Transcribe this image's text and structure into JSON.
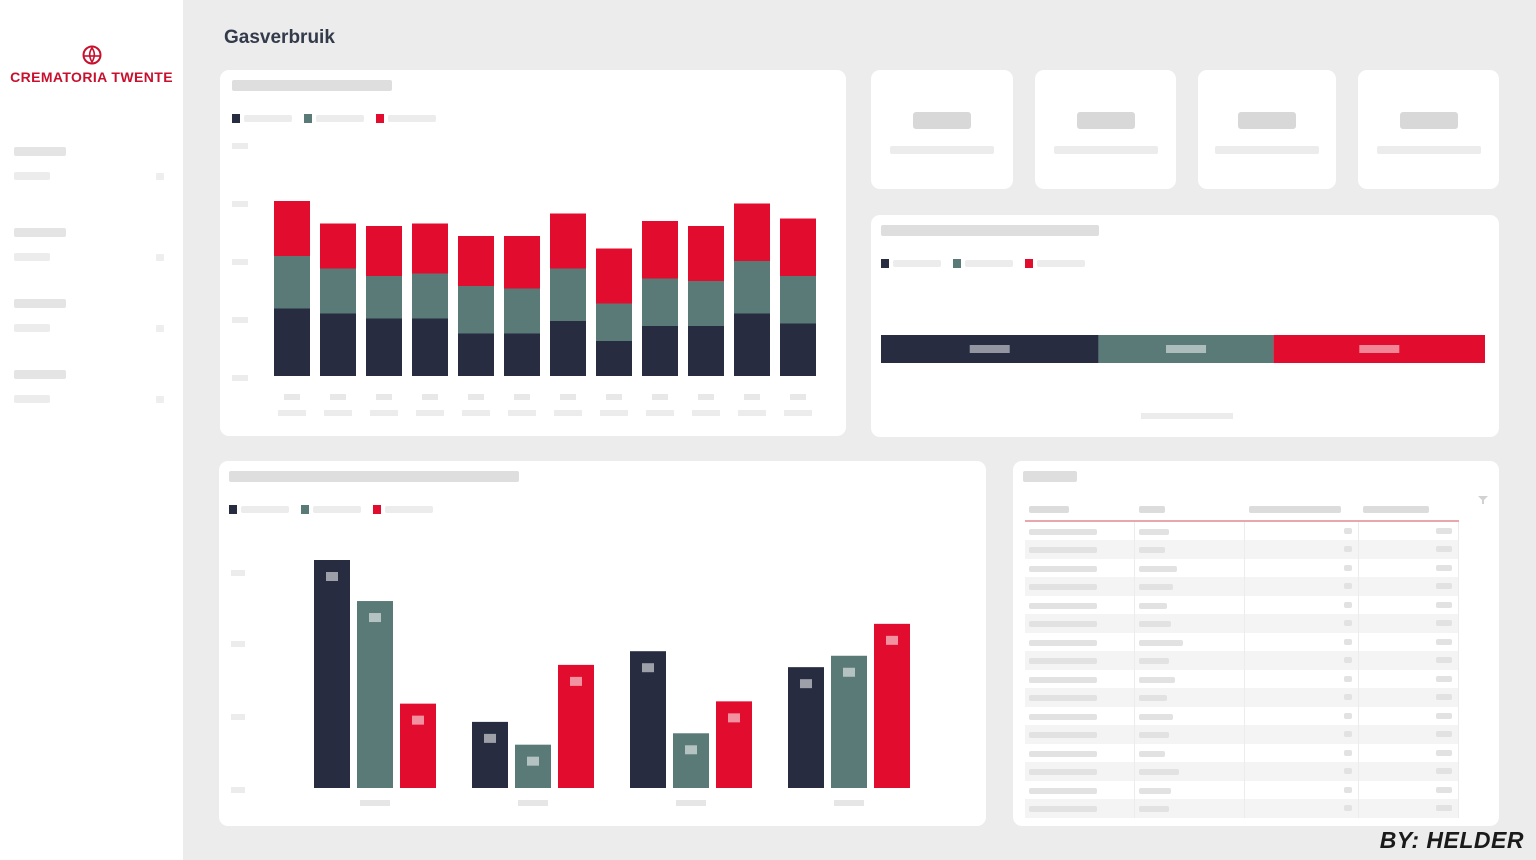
{
  "logo": {
    "text": "CREMATORIA TWENTE",
    "icon": "crematoria-logo-icon"
  },
  "page": {
    "title": "Gasverbruik"
  },
  "filters": [
    {
      "label": "",
      "value": ""
    },
    {
      "label": "",
      "value": ""
    },
    {
      "label": "",
      "value": ""
    },
    {
      "label": "",
      "value": ""
    }
  ],
  "kpis": [
    {
      "value": "",
      "label": ""
    },
    {
      "value": "",
      "label": ""
    },
    {
      "value": "",
      "label": ""
    },
    {
      "value": "",
      "label": ""
    }
  ],
  "colors": {
    "navy": "#272c41",
    "teal": "#5a7a78",
    "red": "#e20c2e",
    "brand": "#c8102e"
  },
  "monthly_chart": {
    "title": "",
    "chart_data": {
      "type": "bar",
      "stacked": true,
      "categories": [
        "",
        "",
        "",
        "",
        "",
        "",
        "",
        "",
        "",
        "",
        "",
        ""
      ],
      "series": [
        {
          "color": "#272c41",
          "values": [
            27,
            25,
            23,
            23,
            17,
            17,
            22,
            14,
            20,
            20,
            25,
            21
          ]
        },
        {
          "color": "#5a7a78",
          "values": [
            21,
            18,
            17,
            18,
            19,
            18,
            21,
            15,
            19,
            18,
            21,
            19
          ]
        },
        {
          "color": "#e20c2e",
          "values": [
            22,
            18,
            20,
            20,
            20,
            21,
            22,
            22,
            23,
            22,
            23,
            23
          ]
        }
      ],
      "ylim": [
        0,
        100
      ],
      "legend": "top-left",
      "grid": false
    }
  },
  "distribution_chart": {
    "title": "",
    "chart_data": {
      "type": "bar",
      "orientation": "horizontal",
      "stacked": true,
      "categories": [
        ""
      ],
      "series": [
        {
          "color": "#272c41",
          "values": [
            36
          ]
        },
        {
          "color": "#5a7a78",
          "values": [
            29
          ]
        },
        {
          "color": "#e20c2e",
          "values": [
            35
          ]
        }
      ],
      "xlim": [
        0,
        100
      ],
      "legend": "top-left"
    }
  },
  "grouped_chart": {
    "title": "",
    "chart_data": {
      "type": "bar",
      "categories": [
        "",
        "",
        "",
        ""
      ],
      "series": [
        {
          "color": "#272c41",
          "values": [
            100,
            29,
            60,
            53
          ]
        },
        {
          "color": "#5a7a78",
          "values": [
            82,
            19,
            24,
            58
          ]
        },
        {
          "color": "#e20c2e",
          "values": [
            37,
            54,
            38,
            72
          ]
        }
      ],
      "ylim": [
        0,
        100
      ],
      "legend": "top-left",
      "grid": false
    }
  },
  "table": {
    "title": "",
    "headers": [
      "",
      "",
      "",
      ""
    ],
    "rows": 16
  },
  "footer": {
    "text": "BY: HELDER"
  }
}
